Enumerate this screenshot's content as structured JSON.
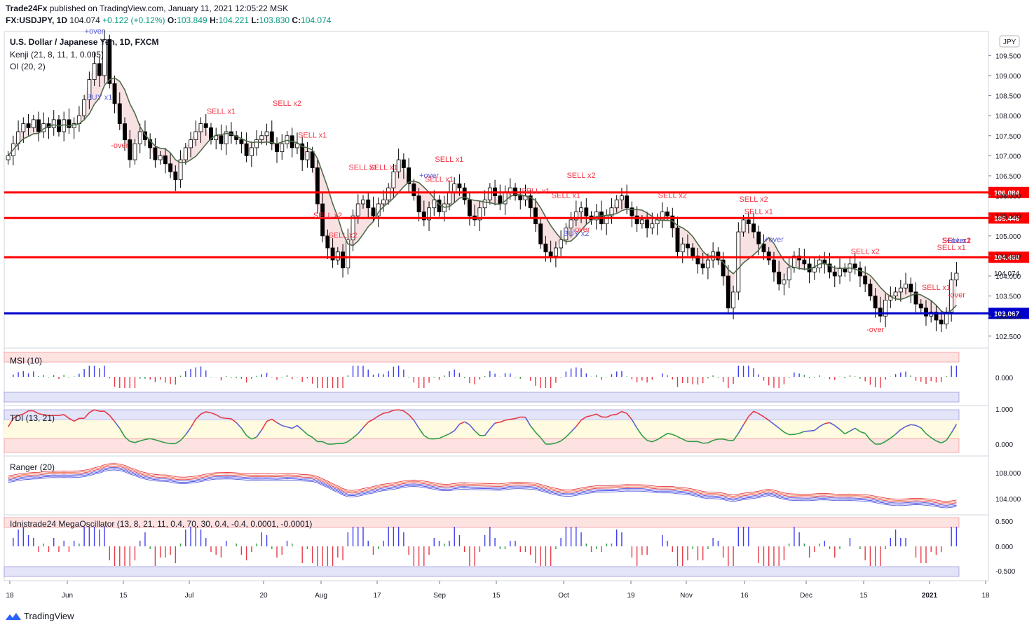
{
  "header": {
    "publisher": "Trade24Fx",
    "published_text": "published on TradingView.com, January 11, 2021 12:05:22 MSK",
    "symbol": "FX:USDJPY, 1D",
    "last": "104.074",
    "change": "+0.122 (+0.12%)",
    "o_label": "O:",
    "o": "103.849",
    "h_label": "H:",
    "h": "104.221",
    "l_label": "L:",
    "l": "103.830",
    "c_label": "C:",
    "c": "104.074"
  },
  "main_pane": {
    "title": "U.S. Dollar / Japanese Yen, 1D, FXCM",
    "indicator1": "Kenji (21, 8, 11, 1, 0.005)",
    "indicator2": "OI (20, 2)",
    "currency_badge": "JPY"
  },
  "footer": {
    "brand": "TradingView"
  },
  "colors": {
    "red_level": "#ff0000",
    "blue_level": "#0000cc",
    "up_bar": "#ffffff",
    "down_bar": "#000000",
    "sell": "#f23645",
    "buy": "#5b5fd6",
    "ma": "#4d6b4a",
    "cloud": "#f3c9cc"
  },
  "chart_data": {
    "type": "candlestick",
    "title": "U.S. Dollar / Japanese Yen, 1D, FXCM",
    "x_ticks": [
      "18",
      "Jun",
      "15",
      "Jul",
      "20",
      "Aug",
      "17",
      "Sep",
      "15",
      "Oct",
      "19",
      "Nov",
      "16",
      "Dec",
      "15",
      "2021",
      "18"
    ],
    "y_ticks": [
      "110.000",
      "109.500",
      "109.000",
      "108.500",
      "108.000",
      "107.500",
      "107.000",
      "106.500",
      "106.000",
      "105.500",
      "105.000",
      "104.500",
      "104.000",
      "103.500",
      "103.000",
      "102.500"
    ],
    "ylim": [
      102.2,
      110.1
    ],
    "horizontal_levels": [
      {
        "value": 106.084,
        "label": "106.084",
        "color": "red"
      },
      {
        "value": 105.446,
        "label": "105.446",
        "color": "red"
      },
      {
        "value": 104.468,
        "label": "104.468",
        "color": "red"
      },
      {
        "value": 103.067,
        "label": "103.067",
        "color": "blue"
      }
    ],
    "last_price_label": "104.074",
    "closes": [
      107.0,
      107.3,
      107.6,
      107.8,
      107.7,
      107.9,
      107.6,
      107.8,
      107.7,
      107.9,
      107.6,
      107.9,
      107.7,
      107.8,
      108.0,
      108.4,
      108.9,
      109.3,
      109.0,
      109.9,
      108.8,
      108.3,
      107.8,
      107.4,
      106.9,
      107.3,
      107.6,
      107.4,
      107.2,
      106.9,
      107.0,
      106.8,
      106.6,
      106.4,
      106.9,
      107.2,
      107.4,
      107.6,
      107.8,
      107.7,
      107.4,
      107.5,
      107.3,
      107.6,
      107.5,
      107.4,
      107.3,
      107.0,
      107.2,
      107.4,
      107.5,
      107.6,
      107.3,
      107.1,
      107.3,
      107.5,
      107.2,
      107.3,
      106.9,
      107.1,
      106.7,
      105.8,
      105.0,
      104.7,
      104.4,
      104.6,
      104.2,
      104.9,
      105.5,
      105.8,
      105.9,
      105.7,
      105.5,
      105.8,
      105.9,
      106.2,
      106.6,
      106.9,
      106.7,
      106.3,
      106.0,
      105.6,
      105.4,
      105.7,
      105.9,
      105.6,
      105.8,
      106.1,
      106.3,
      106.2,
      105.9,
      105.5,
      105.4,
      105.7,
      105.9,
      106.2,
      106.0,
      105.8,
      106.1,
      106.2,
      106.0,
      105.9,
      106.0,
      105.7,
      105.3,
      104.8,
      104.6,
      104.5,
      104.7,
      104.9,
      105.2,
      105.4,
      105.6,
      105.7,
      105.5,
      105.4,
      105.6,
      105.3,
      105.5,
      105.7,
      105.9,
      106.0,
      105.7,
      105.5,
      105.3,
      105.4,
      105.2,
      105.3,
      105.4,
      105.6,
      105.5,
      105.2,
      104.6,
      104.8,
      104.7,
      104.5,
      104.3,
      104.2,
      104.4,
      104.6,
      104.4,
      104.0,
      103.2,
      103.6,
      105.1,
      105.4,
      105.3,
      105.1,
      104.8,
      104.6,
      104.4,
      104.1,
      103.8,
      103.9,
      104.2,
      104.5,
      104.4,
      104.3,
      104.1,
      104.2,
      104.4,
      104.3,
      104.1,
      104.0,
      104.2,
      104.1,
      104.3,
      104.2,
      104.0,
      103.8,
      103.5,
      103.2,
      103.0,
      103.4,
      103.5,
      103.6,
      103.7,
      103.8,
      103.6,
      103.3,
      103.2,
      103.0,
      103.1,
      102.9,
      102.8,
      103.1,
      103.9,
      104.07
    ]
  },
  "msi": {
    "label": "MSI (10)",
    "y_tick": "0.000"
  },
  "tdi": {
    "label": "TDI (13, 21)",
    "y_ticks": [
      "1.000",
      "0.000"
    ]
  },
  "ranger": {
    "label": "Ranger (20)",
    "y_ticks": [
      "108.000",
      "104.000"
    ]
  },
  "mega": {
    "label": "Idnistrade24 MegaOscillator (13, 8, 21, 11, 0.4, 70, 30, 0.4, -0.4, 0.0001, -0.0001)",
    "y_ticks": [
      "0.500",
      "0.000",
      "-0.500"
    ]
  },
  "annotations": {
    "signals": [
      {
        "text": "+over",
        "i": 17,
        "type": "buy"
      },
      {
        "text": "BUY x1",
        "i": 18,
        "type": "buy",
        "below": true
      },
      {
        "text": "-over",
        "i": 22,
        "type": "sell",
        "below": true
      },
      {
        "text": "SELL x1",
        "i": 42,
        "type": "sell"
      },
      {
        "text": "SELL x2",
        "i": 55,
        "type": "sell"
      },
      {
        "text": "SELL x1",
        "i": 60,
        "type": "sell"
      },
      {
        "text": "SELL x2",
        "i": 63,
        "type": "sell"
      },
      {
        "text": "SELL x2",
        "i": 66,
        "type": "sell"
      },
      {
        "text": "SELL x1",
        "i": 70,
        "type": "sell"
      },
      {
        "text": "SELL x1",
        "i": 74,
        "type": "sell"
      },
      {
        "text": "SELL x1",
        "i": 85,
        "type": "sell"
      },
      {
        "text": "SELL x1",
        "i": 87,
        "type": "sell"
      },
      {
        "text": "+over",
        "i": 83,
        "type": "buy"
      },
      {
        "text": "SELL x1",
        "i": 104,
        "type": "sell"
      },
      {
        "text": "SELL x1",
        "i": 110,
        "type": "sell"
      },
      {
        "text": "SELL x2",
        "i": 113,
        "type": "sell"
      },
      {
        "text": "BUY x2",
        "i": 112,
        "type": "buy",
        "below": true
      },
      {
        "text": "-over",
        "i": 113,
        "type": "sell",
        "below": true
      },
      {
        "text": "SELL x2",
        "i": 131,
        "type": "sell"
      },
      {
        "text": "SELL x2",
        "i": 147,
        "type": "sell"
      },
      {
        "text": "SELL x1",
        "i": 148,
        "type": "sell"
      },
      {
        "text": "+over",
        "i": 151,
        "type": "buy"
      },
      {
        "text": "SELL x2",
        "i": 169,
        "type": "sell"
      },
      {
        "text": "-over",
        "i": 171,
        "type": "sell",
        "below": true
      },
      {
        "text": "SELL x1",
        "i": 183,
        "type": "sell"
      },
      {
        "text": "SELL x1",
        "i": 186,
        "type": "sell"
      },
      {
        "text": "-over",
        "i": 188,
        "type": "sell",
        "below": true
      },
      {
        "text": "+over",
        "i": 190,
        "type": "buy"
      },
      {
        "text": "SELL x2",
        "i": 205,
        "type": "sell"
      },
      {
        "text": "SELL x1",
        "i": 207,
        "type": "sell"
      },
      {
        "text": "SELL x2",
        "i": 209,
        "type": "sell"
      },
      {
        "text": "SELL x1",
        "i": 224,
        "type": "sell"
      },
      {
        "text": "SELL x2",
        "i": 226,
        "type": "sell"
      },
      {
        "text": "SELL x2",
        "i": 237,
        "type": "sell"
      },
      {
        "text": "SELL x1",
        "i": 240,
        "type": "sell"
      },
      {
        "text": "SELL x1",
        "i": 245,
        "type": "sell"
      },
      {
        "text": "+over",
        "i": 252,
        "type": "buy"
      }
    ]
  }
}
